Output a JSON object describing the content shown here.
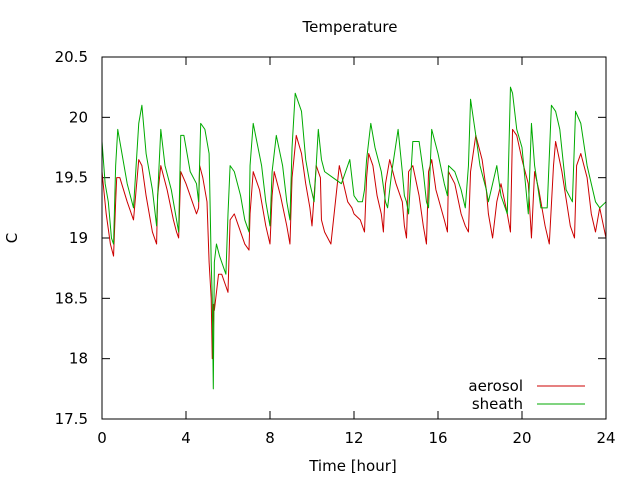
{
  "chart_data": {
    "type": "line",
    "title": "Temperature",
    "xlabel": "Time [hour]",
    "ylabel": "C",
    "xlim": [
      0,
      24
    ],
    "ylim": [
      17.5,
      20.5
    ],
    "x_ticks": [
      0,
      4,
      8,
      12,
      16,
      20,
      24
    ],
    "x_tick_labels": [
      "0",
      "4",
      "8",
      "12",
      "16",
      "20",
      "24"
    ],
    "y_ticks": [
      17.5,
      18,
      18.5,
      19,
      19.5,
      20,
      20.5
    ],
    "y_tick_labels": [
      "17.5",
      "18",
      "18.5",
      "19",
      "19.5",
      "20",
      "20.5"
    ],
    "grid": false,
    "legend_position": "bottom-right",
    "series": [
      {
        "name": "aerosol",
        "color": "#cc0000",
        "x": [
          0.0,
          0.2,
          0.4,
          0.55,
          0.65,
          0.7,
          0.85,
          1.2,
          1.5,
          1.75,
          1.9,
          2.1,
          2.4,
          2.6,
          2.65,
          2.8,
          3.1,
          3.4,
          3.55,
          3.65,
          3.75,
          4.0,
          4.3,
          4.5,
          4.6,
          4.65,
          4.8,
          5.0,
          5.1,
          5.2,
          5.25,
          5.3,
          5.35,
          5.45,
          5.55,
          5.7,
          5.9,
          6.0,
          6.1,
          6.3,
          6.5,
          6.8,
          7.0,
          7.05,
          7.2,
          7.5,
          7.8,
          8.0,
          8.1,
          8.2,
          8.5,
          8.8,
          8.95,
          9.05,
          9.25,
          9.5,
          9.7,
          9.9,
          10.0,
          10.2,
          10.4,
          10.45,
          10.6,
          10.9,
          11.3,
          11.7,
          11.9,
          12.0,
          12.3,
          12.5,
          12.6,
          12.7,
          12.9,
          13.1,
          13.3,
          13.4,
          13.5,
          13.7,
          14.0,
          14.3,
          14.4,
          14.5,
          14.6,
          14.8,
          15.1,
          15.3,
          15.45,
          15.55,
          15.7,
          15.9,
          16.3,
          16.45,
          16.5,
          16.8,
          17.1,
          17.3,
          17.45,
          17.55,
          17.8,
          18.1,
          18.3,
          18.4,
          18.6,
          18.8,
          19.0,
          19.3,
          19.45,
          19.55,
          19.75,
          20.0,
          20.3,
          20.45,
          20.6,
          20.8,
          21.1,
          21.3,
          21.5,
          21.6,
          21.9,
          22.3,
          22.5,
          22.6,
          22.8,
          23.1,
          23.3,
          23.5,
          23.7,
          24.0
        ],
        "y": [
          19.55,
          19.2,
          18.95,
          18.85,
          19.3,
          19.5,
          19.5,
          19.3,
          19.15,
          19.65,
          19.6,
          19.35,
          19.05,
          18.95,
          19.35,
          19.6,
          19.4,
          19.15,
          19.05,
          19.0,
          19.55,
          19.45,
          19.3,
          19.2,
          19.25,
          19.6,
          19.5,
          19.3,
          18.8,
          18.5,
          18.0,
          18.45,
          18.4,
          18.55,
          18.7,
          18.7,
          18.6,
          18.55,
          19.15,
          19.2,
          19.1,
          18.95,
          18.9,
          19.2,
          19.55,
          19.4,
          19.1,
          18.95,
          19.35,
          19.55,
          19.35,
          19.1,
          18.95,
          19.5,
          19.85,
          19.7,
          19.45,
          19.25,
          19.1,
          19.6,
          19.5,
          19.15,
          19.05,
          18.95,
          19.6,
          19.3,
          19.25,
          19.2,
          19.15,
          19.05,
          19.5,
          19.7,
          19.6,
          19.35,
          19.2,
          19.05,
          19.45,
          19.65,
          19.45,
          19.3,
          19.1,
          19.0,
          19.55,
          19.6,
          19.35,
          19.1,
          18.95,
          19.55,
          19.65,
          19.4,
          19.15,
          19.05,
          19.55,
          19.45,
          19.2,
          19.1,
          19.05,
          19.55,
          19.85,
          19.65,
          19.4,
          19.2,
          19.0,
          19.3,
          19.45,
          19.2,
          19.05,
          19.9,
          19.85,
          19.65,
          19.45,
          19.0,
          19.55,
          19.4,
          19.1,
          18.95,
          19.6,
          19.8,
          19.55,
          19.1,
          19.0,
          19.6,
          19.7,
          19.5,
          19.2,
          19.05,
          19.25,
          19.0
        ]
      },
      {
        "name": "sheath",
        "color": "#00aa00",
        "x": [
          0.0,
          0.15,
          0.3,
          0.45,
          0.55,
          0.65,
          0.75,
          0.9,
          1.2,
          1.5,
          1.75,
          1.9,
          2.1,
          2.4,
          2.6,
          2.65,
          2.8,
          3.0,
          3.3,
          3.5,
          3.65,
          3.75,
          3.9,
          4.2,
          4.5,
          4.6,
          4.7,
          4.9,
          5.1,
          5.2,
          5.25,
          5.3,
          5.35,
          5.45,
          5.6,
          5.8,
          5.9,
          6.0,
          6.1,
          6.3,
          6.6,
          6.8,
          7.0,
          7.05,
          7.2,
          7.6,
          7.8,
          8.0,
          8.1,
          8.3,
          8.6,
          8.8,
          8.95,
          9.05,
          9.2,
          9.5,
          9.7,
          9.9,
          10.1,
          10.3,
          10.45,
          10.6,
          11.0,
          11.4,
          11.6,
          11.8,
          12.0,
          12.2,
          12.4,
          12.5,
          12.6,
          12.8,
          13.0,
          13.3,
          13.5,
          13.6,
          13.8,
          14.1,
          14.3,
          14.4,
          14.5,
          14.6,
          14.8,
          15.1,
          15.3,
          15.45,
          15.55,
          15.7,
          16.0,
          16.3,
          16.45,
          16.5,
          16.8,
          17.1,
          17.3,
          17.45,
          17.55,
          17.8,
          18.0,
          18.3,
          18.4,
          18.6,
          18.8,
          19.0,
          19.3,
          19.45,
          19.55,
          19.75,
          20.0,
          20.3,
          20.45,
          20.6,
          20.9,
          21.2,
          21.4,
          21.6,
          21.8,
          22.1,
          22.4,
          22.55,
          22.8,
          23.1,
          23.3,
          23.5,
          23.7,
          24.0
        ],
        "y": [
          19.8,
          19.45,
          19.3,
          19.0,
          18.95,
          19.6,
          19.9,
          19.75,
          19.45,
          19.25,
          19.95,
          20.1,
          19.7,
          19.4,
          19.1,
          19.35,
          19.9,
          19.6,
          19.4,
          19.2,
          19.05,
          19.85,
          19.85,
          19.55,
          19.45,
          19.3,
          19.95,
          19.9,
          19.7,
          18.8,
          18.5,
          17.75,
          18.8,
          18.95,
          18.85,
          18.75,
          18.7,
          19.2,
          19.6,
          19.55,
          19.35,
          19.15,
          19.05,
          19.6,
          19.95,
          19.6,
          19.3,
          19.1,
          19.55,
          19.85,
          19.6,
          19.3,
          19.15,
          19.75,
          20.2,
          20.05,
          19.65,
          19.45,
          19.3,
          19.9,
          19.65,
          19.55,
          19.5,
          19.45,
          19.55,
          19.65,
          19.35,
          19.3,
          19.3,
          19.4,
          19.65,
          19.95,
          19.75,
          19.55,
          19.3,
          19.25,
          19.55,
          19.9,
          19.55,
          19.35,
          19.3,
          19.2,
          19.8,
          19.8,
          19.55,
          19.3,
          19.25,
          19.9,
          19.7,
          19.45,
          19.35,
          19.6,
          19.55,
          19.4,
          19.25,
          19.6,
          20.15,
          19.85,
          19.6,
          19.4,
          19.3,
          19.45,
          19.6,
          19.35,
          19.2,
          20.25,
          20.2,
          19.9,
          19.75,
          19.2,
          19.95,
          19.6,
          19.25,
          19.25,
          20.1,
          20.05,
          19.9,
          19.4,
          19.3,
          20.05,
          19.95,
          19.6,
          19.45,
          19.3,
          19.25,
          19.3
        ]
      }
    ]
  }
}
